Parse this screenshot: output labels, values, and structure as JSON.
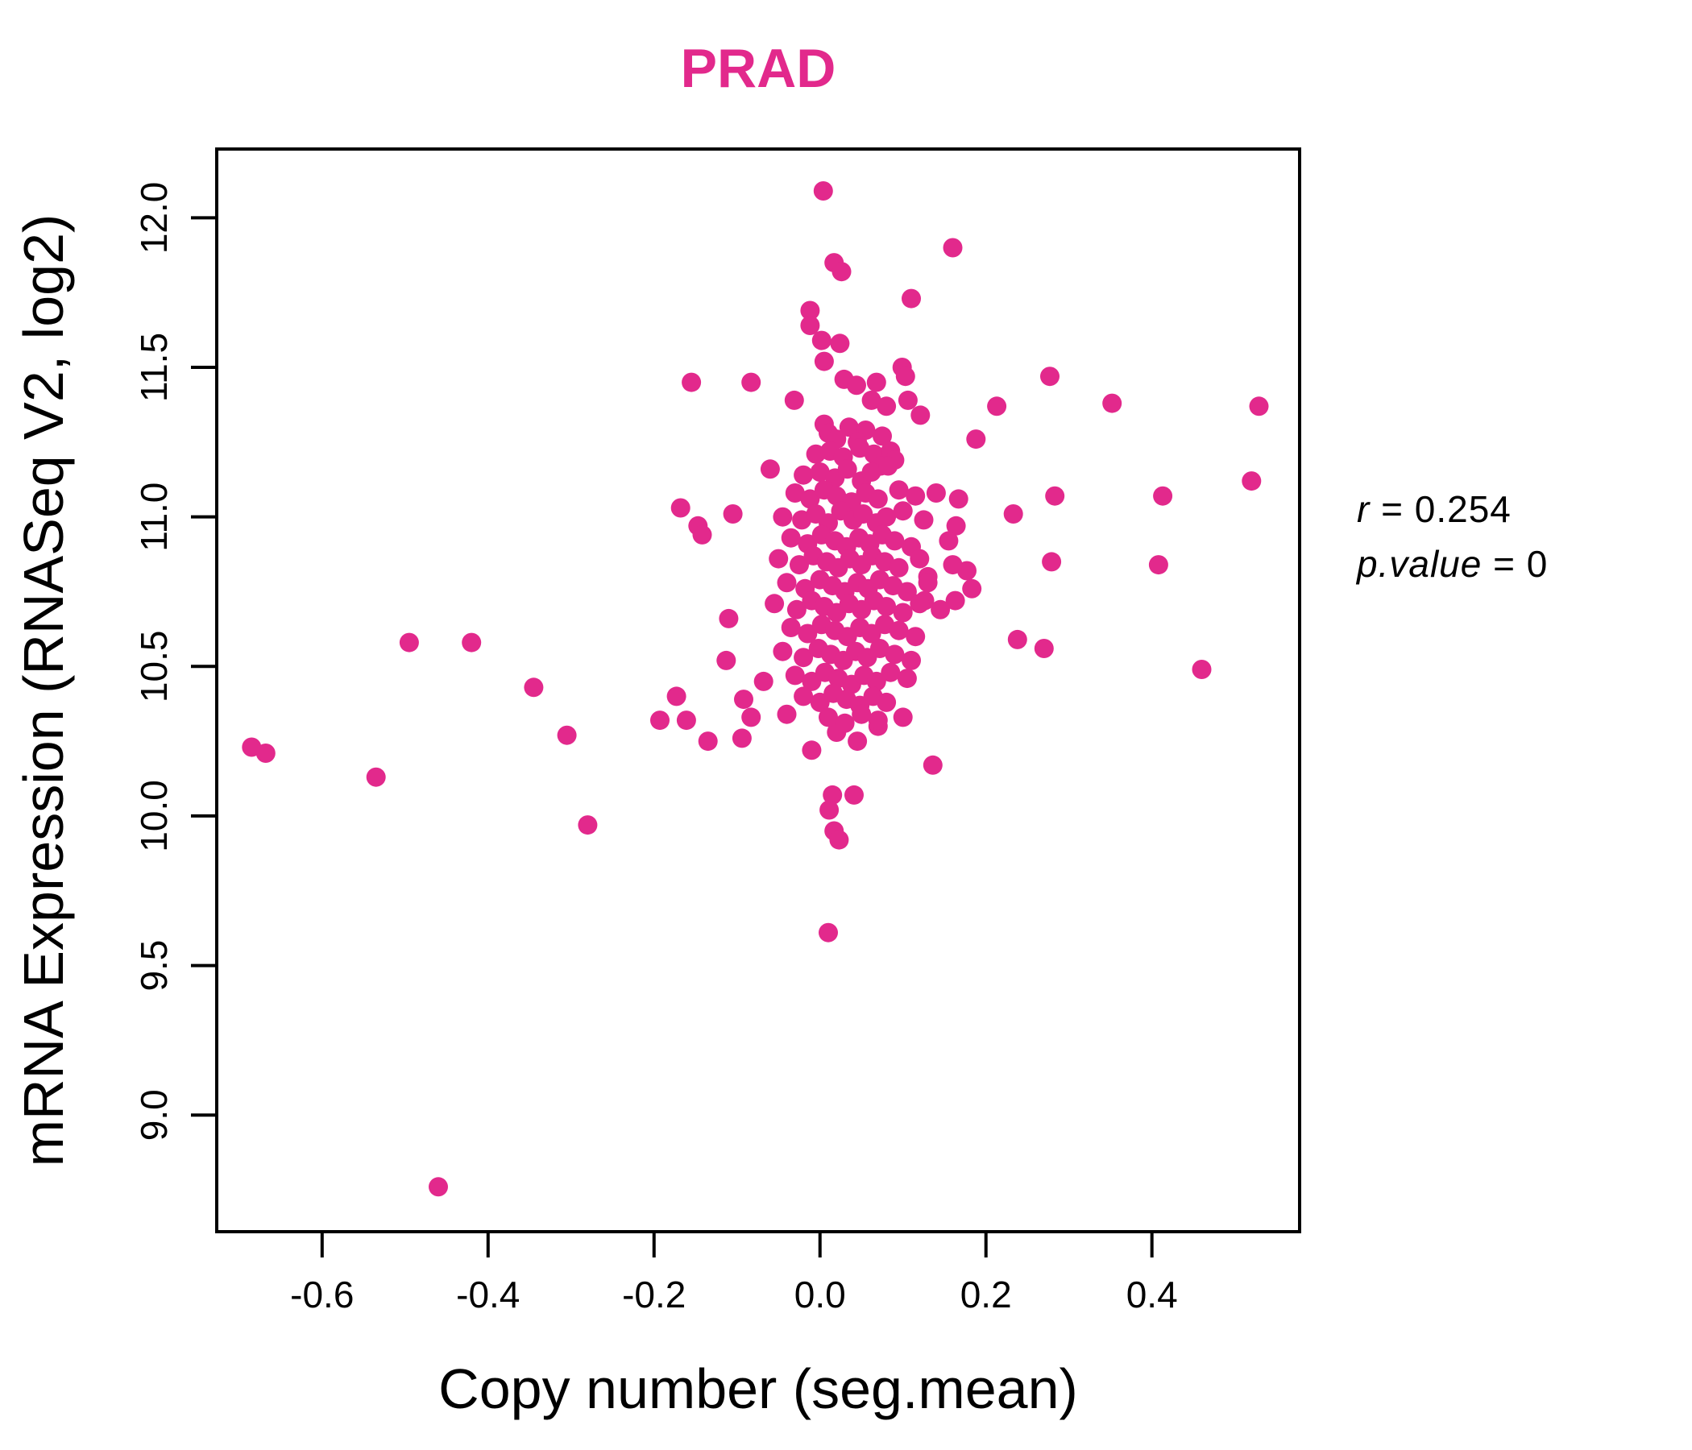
{
  "accent_color": "#E2298C",
  "axis_color": "#000000",
  "chart_data": {
    "type": "scatter",
    "title": "PRAD",
    "title_color": "#E2298C",
    "xlabel": "Copy number (seg.mean)",
    "ylabel": "mRNA Expression (RNASeq V2, log2)",
    "xlim": [
      -0.727,
      0.578
    ],
    "ylim": [
      8.61,
      12.23
    ],
    "x_ticks": [
      -0.6,
      -0.4,
      -0.2,
      0.0,
      0.2,
      0.4
    ],
    "x_tick_labels": [
      "-0.6",
      "-0.4",
      "-0.2",
      "0.0",
      "0.2",
      "0.4"
    ],
    "y_ticks": [
      9.0,
      9.5,
      10.0,
      10.5,
      11.0,
      11.5,
      12.0
    ],
    "y_tick_labels": [
      "9.0",
      "9.5",
      "10.0",
      "10.5",
      "11.0",
      "11.5",
      "12.0"
    ],
    "grid": false,
    "legend": "none",
    "point_color": "#E2298C",
    "annotation": {
      "line1_var": "r",
      "line1_rest": " = 0.254",
      "line2_var": "p.value",
      "line2_rest": " = 0"
    },
    "points": [
      [
        -0.685,
        10.23
      ],
      [
        -0.668,
        10.21
      ],
      [
        -0.535,
        10.13
      ],
      [
        -0.495,
        10.58
      ],
      [
        -0.42,
        10.58
      ],
      [
        -0.46,
        8.76
      ],
      [
        -0.345,
        10.43
      ],
      [
        -0.305,
        10.27
      ],
      [
        -0.28,
        9.97
      ],
      [
        -0.168,
        11.03
      ],
      [
        -0.147,
        10.97
      ],
      [
        -0.142,
        10.94
      ],
      [
        -0.105,
        11.01
      ],
      [
        -0.11,
        10.66
      ],
      [
        -0.113,
        10.52
      ],
      [
        -0.173,
        10.4
      ],
      [
        -0.193,
        10.32
      ],
      [
        -0.135,
        10.25
      ],
      [
        -0.083,
        10.33
      ],
      [
        -0.068,
        10.45
      ],
      [
        -0.161,
        10.32
      ],
      [
        -0.092,
        10.39
      ],
      [
        -0.094,
        10.26
      ],
      [
        -0.04,
        10.34
      ],
      [
        0.004,
        12.09
      ],
      [
        0.16,
        11.9
      ],
      [
        0.017,
        11.85
      ],
      [
        0.026,
        11.82
      ],
      [
        0.11,
        11.73
      ],
      [
        -0.012,
        11.69
      ],
      [
        -0.012,
        11.64
      ],
      [
        0.002,
        11.59
      ],
      [
        0.024,
        11.58
      ],
      [
        0.005,
        11.52
      ],
      [
        0.099,
        11.5
      ],
      [
        0.103,
        11.47
      ],
      [
        -0.083,
        11.45
      ],
      [
        0.029,
        11.46
      ],
      [
        0.044,
        11.44
      ],
      [
        0.068,
        11.45
      ],
      [
        -0.031,
        11.39
      ],
      [
        0.062,
        11.39
      ],
      [
        0.08,
        11.37
      ],
      [
        0.106,
        11.39
      ],
      [
        0.121,
        11.34
      ],
      [
        0.213,
        11.37
      ],
      [
        0.188,
        11.26
      ],
      [
        -0.155,
        11.45
      ],
      [
        0.277,
        11.47
      ],
      [
        0.352,
        11.38
      ],
      [
        0.529,
        11.37
      ],
      [
        0.52,
        11.12
      ],
      [
        0.283,
        11.07
      ],
      [
        0.413,
        11.07
      ],
      [
        0.279,
        10.85
      ],
      [
        0.46,
        10.49
      ],
      [
        0.183,
        10.76
      ],
      [
        0.177,
        10.82
      ],
      [
        0.408,
        10.84
      ],
      [
        0.238,
        10.59
      ],
      [
        0.27,
        10.56
      ],
      [
        0.136,
        10.17
      ],
      [
        0.233,
        11.01
      ],
      [
        0.167,
        11.06
      ],
      [
        0.164,
        10.97
      ],
      [
        0.13,
        10.8
      ],
      [
        0.126,
        10.72
      ],
      [
        0.163,
        10.72
      ],
      [
        0.015,
        10.07
      ],
      [
        0.041,
        10.07
      ],
      [
        0.011,
        10.02
      ],
      [
        0.017,
        9.95
      ],
      [
        0.023,
        9.92
      ],
      [
        0.01,
        9.61
      ],
      [
        0.02,
        10.28
      ],
      [
        0.045,
        10.25
      ],
      [
        -0.01,
        10.22
      ],
      [
        0.07,
        10.3
      ],
      [
        0.1,
        10.33
      ],
      [
        0.005,
        11.31
      ],
      [
        0.035,
        11.3
      ],
      [
        0.01,
        11.28
      ],
      [
        0.055,
        11.29
      ],
      [
        0.075,
        11.27
      ],
      [
        0.02,
        11.26
      ],
      [
        0.045,
        11.25
      ],
      [
        -0.005,
        11.21
      ],
      [
        0.012,
        11.22
      ],
      [
        0.028,
        11.2
      ],
      [
        0.048,
        11.23
      ],
      [
        0.065,
        11.21
      ],
      [
        0.085,
        11.22
      ],
      [
        0.073,
        11.17
      ],
      [
        0.09,
        11.19
      ],
      [
        -0.06,
        11.16
      ],
      [
        -0.02,
        11.14
      ],
      [
        0.0,
        11.15
      ],
      [
        0.018,
        11.13
      ],
      [
        0.033,
        11.16
      ],
      [
        0.05,
        11.12
      ],
      [
        0.062,
        11.15
      ],
      [
        0.082,
        11.17
      ],
      [
        -0.03,
        11.08
      ],
      [
        -0.012,
        11.06
      ],
      [
        0.005,
        11.09
      ],
      [
        0.02,
        11.07
      ],
      [
        0.038,
        11.05
      ],
      [
        0.055,
        11.08
      ],
      [
        0.07,
        11.06
      ],
      [
        0.095,
        11.09
      ],
      [
        0.115,
        11.07
      ],
      [
        0.14,
        11.08
      ],
      [
        -0.045,
        11.0
      ],
      [
        -0.022,
        10.99
      ],
      [
        -0.005,
        11.01
      ],
      [
        0.01,
        10.98
      ],
      [
        0.025,
        11.02
      ],
      [
        0.04,
        10.99
      ],
      [
        0.052,
        11.01
      ],
      [
        0.068,
        10.98
      ],
      [
        0.08,
        11.0
      ],
      [
        0.1,
        11.02
      ],
      [
        0.125,
        10.99
      ],
      [
        -0.035,
        10.93
      ],
      [
        -0.015,
        10.91
      ],
      [
        0.002,
        10.94
      ],
      [
        0.018,
        10.92
      ],
      [
        0.032,
        10.9
      ],
      [
        0.047,
        10.93
      ],
      [
        0.06,
        10.91
      ],
      [
        0.075,
        10.94
      ],
      [
        0.09,
        10.92
      ],
      [
        0.11,
        10.9
      ],
      [
        0.155,
        10.92
      ],
      [
        -0.05,
        10.86
      ],
      [
        -0.025,
        10.84
      ],
      [
        -0.008,
        10.87
      ],
      [
        0.008,
        10.85
      ],
      [
        0.022,
        10.83
      ],
      [
        0.036,
        10.86
      ],
      [
        0.05,
        10.84
      ],
      [
        0.063,
        10.87
      ],
      [
        0.078,
        10.85
      ],
      [
        0.095,
        10.83
      ],
      [
        0.12,
        10.86
      ],
      [
        0.16,
        10.84
      ],
      [
        -0.04,
        10.78
      ],
      [
        -0.018,
        10.76
      ],
      [
        0.0,
        10.79
      ],
      [
        0.015,
        10.77
      ],
      [
        0.03,
        10.75
      ],
      [
        0.045,
        10.78
      ],
      [
        0.058,
        10.76
      ],
      [
        0.072,
        10.79
      ],
      [
        0.088,
        10.77
      ],
      [
        0.105,
        10.75
      ],
      [
        0.13,
        10.78
      ],
      [
        -0.055,
        10.71
      ],
      [
        -0.028,
        10.69
      ],
      [
        -0.01,
        10.72
      ],
      [
        0.005,
        10.7
      ],
      [
        0.02,
        10.68
      ],
      [
        0.035,
        10.71
      ],
      [
        0.05,
        10.69
      ],
      [
        0.065,
        10.72
      ],
      [
        0.08,
        10.7
      ],
      [
        0.1,
        10.68
      ],
      [
        0.12,
        10.71
      ],
      [
        0.145,
        10.69
      ],
      [
        -0.035,
        10.63
      ],
      [
        -0.015,
        10.61
      ],
      [
        0.002,
        10.64
      ],
      [
        0.018,
        10.62
      ],
      [
        0.033,
        10.6
      ],
      [
        0.048,
        10.63
      ],
      [
        0.062,
        10.61
      ],
      [
        0.078,
        10.64
      ],
      [
        0.095,
        10.62
      ],
      [
        0.115,
        10.6
      ],
      [
        -0.045,
        10.55
      ],
      [
        -0.02,
        10.53
      ],
      [
        -0.002,
        10.56
      ],
      [
        0.013,
        10.54
      ],
      [
        0.028,
        10.52
      ],
      [
        0.043,
        10.55
      ],
      [
        0.057,
        10.53
      ],
      [
        0.072,
        10.56
      ],
      [
        0.09,
        10.54
      ],
      [
        0.11,
        10.52
      ],
      [
        -0.03,
        10.47
      ],
      [
        -0.01,
        10.45
      ],
      [
        0.006,
        10.48
      ],
      [
        0.022,
        10.46
      ],
      [
        0.038,
        10.44
      ],
      [
        0.053,
        10.47
      ],
      [
        0.068,
        10.45
      ],
      [
        0.085,
        10.48
      ],
      [
        0.105,
        10.46
      ],
      [
        -0.02,
        10.4
      ],
      [
        0.0,
        10.38
      ],
      [
        0.016,
        10.41
      ],
      [
        0.032,
        10.39
      ],
      [
        0.048,
        10.37
      ],
      [
        0.064,
        10.4
      ],
      [
        0.08,
        10.38
      ],
      [
        0.01,
        10.33
      ],
      [
        0.03,
        10.31
      ],
      [
        0.05,
        10.34
      ],
      [
        0.07,
        10.32
      ]
    ]
  }
}
